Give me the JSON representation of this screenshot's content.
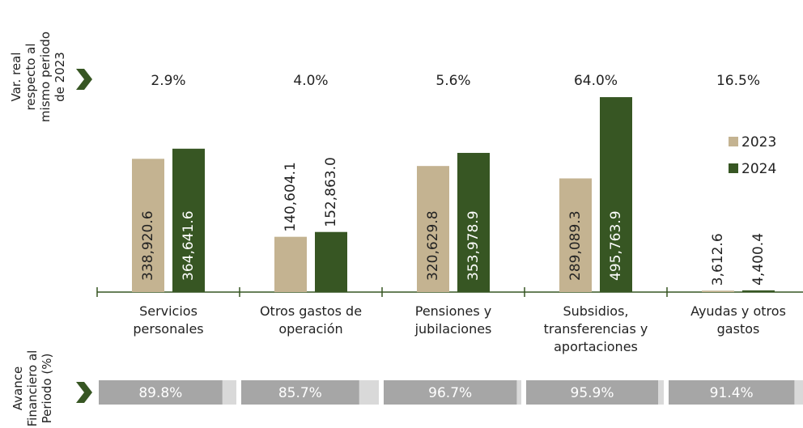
{
  "chart_data": {
    "type": "bar",
    "categories": [
      "Servicios personales",
      "Otros gastos de operación",
      "Pensiones y jubilaciones",
      "Subsidios, transferencias y aportaciones",
      "Ayudas y otros gastos"
    ],
    "series": [
      {
        "name": "2023",
        "color": "#c4b391",
        "values": [
          338920.6,
          140604.1,
          320629.8,
          289089.3,
          3612.6
        ],
        "value_labels": [
          "338,920.6",
          "140,604.1",
          "320,629.8",
          "289,089.3",
          "3,612.6"
        ]
      },
      {
        "name": "2024",
        "color": "#375623",
        "values": [
          364641.6,
          152863.0,
          353978.9,
          495763.9,
          4400.4
        ],
        "value_labels": [
          "364,641.6",
          "152,863.0",
          "353,978.9",
          "495,763.9",
          "4,400.4"
        ]
      }
    ],
    "ylim": [
      0,
      500000
    ],
    "legend": "right",
    "variation": {
      "label": "Var. real respecto al mismo periodo de 2023",
      "values": [
        2.9,
        4.0,
        5.6,
        64.0,
        16.5
      ],
      "value_labels": [
        "2.9%",
        "4.0%",
        "5.6%",
        "64.0%",
        "16.5%"
      ]
    },
    "progress": {
      "label": "Avance Financiero al Periodo (%)",
      "values": [
        89.8,
        85.7,
        96.7,
        95.9,
        91.4
      ],
      "value_labels": [
        "89.8%",
        "85.7%",
        "96.7%",
        "95.9%",
        "91.4%"
      ],
      "xlim": [
        0,
        100
      ],
      "color": "#a6a6a6",
      "track_color": "#d9d9d9"
    }
  }
}
